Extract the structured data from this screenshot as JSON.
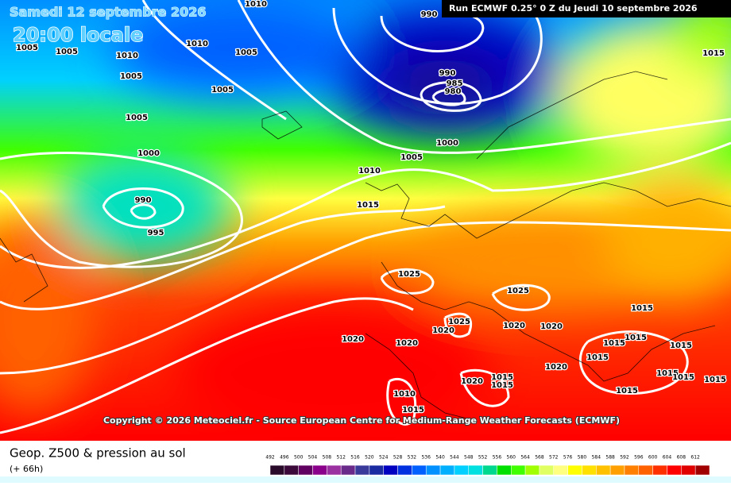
{
  "header": {
    "date": "Samedi 12 septembre 2026",
    "time": "20:00 locale",
    "run": "Run ECMWF 0.25° 0 Z du Jeudi 10 septembre 2026"
  },
  "copyright": "Copyright © 2026 Meteociel.fr - Source European Centre for Medium-Range Weather Forecasts (ECMWF)",
  "isobar_labels": [
    "1010",
    "990",
    "1005",
    "1005",
    "1010",
    "1010",
    "1005",
    "1005",
    "1005",
    "990",
    "985",
    "980",
    "1005",
    "1000",
    "1000",
    "1005",
    "1010",
    "990",
    "1015",
    "995",
    "1025",
    "1025",
    "1015",
    "1025",
    "1020",
    "1020",
    "1020",
    "1020",
    "1020",
    "1015",
    "1015",
    "1015",
    "1015",
    "1020",
    "1020",
    "1015",
    "1015",
    "1010",
    "1015",
    "1015",
    "1015",
    "1015",
    "1015",
    "1015"
  ],
  "legend": {
    "title": "Geop. Z500 & pression au sol",
    "lead": "(+ 66h)",
    "scale": [
      492,
      496,
      500,
      504,
      508,
      512,
      516,
      520,
      524,
      528,
      532,
      536,
      540,
      544,
      548,
      552,
      556,
      560,
      564,
      568,
      572,
      576,
      580,
      584,
      588,
      592,
      596,
      600,
      604,
      608,
      612
    ],
    "colors": [
      "#2a0a2a",
      "#3b0a3b",
      "#600060",
      "#8b008b",
      "#9b30a0",
      "#6a2a8a",
      "#3a3a9a",
      "#1a2aa0",
      "#0000c0",
      "#0030e0",
      "#0060ff",
      "#0090ff",
      "#00b0ff",
      "#00d0ff",
      "#00e0e0",
      "#00d890",
      "#00e000",
      "#40ff00",
      "#a0ff00",
      "#e0ff60",
      "#ffff80",
      "#ffff00",
      "#ffe000",
      "#ffc000",
      "#ffa000",
      "#ff8000",
      "#ff6000",
      "#ff3000",
      "#ff0000",
      "#e00000",
      "#a00000"
    ]
  }
}
